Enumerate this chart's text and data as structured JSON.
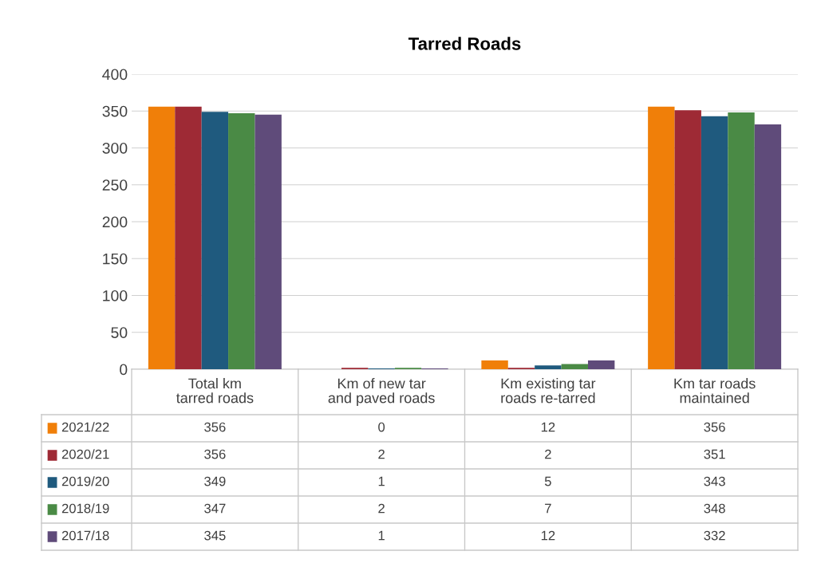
{
  "chart_data": {
    "type": "bar",
    "title": "Tarred Roads",
    "categories": [
      "Total km tarred roads",
      "Km of new tar and paved roads",
      "Km existing tar roads re-tarred",
      "Km tar roads maintained"
    ],
    "series": [
      {
        "name": "2021/22",
        "color": "#f07f09",
        "values": [
          356,
          0,
          12,
          356
        ]
      },
      {
        "name": "2020/21",
        "color": "#9e2a35",
        "values": [
          356,
          2,
          2,
          351
        ]
      },
      {
        "name": "2019/20",
        "color": "#1f5a7e",
        "values": [
          349,
          1,
          5,
          343
        ]
      },
      {
        "name": "2018/19",
        "color": "#4a8a45",
        "values": [
          347,
          2,
          7,
          348
        ]
      },
      {
        "name": "2017/18",
        "color": "#5f4b7a",
        "values": [
          345,
          1,
          12,
          332
        ]
      }
    ],
    "ylim": [
      0,
      400
    ],
    "yticks": [
      0,
      50,
      100,
      150,
      200,
      250,
      300,
      350,
      400
    ],
    "grid": "y",
    "legend": "bottom",
    "data_labels": true
  }
}
